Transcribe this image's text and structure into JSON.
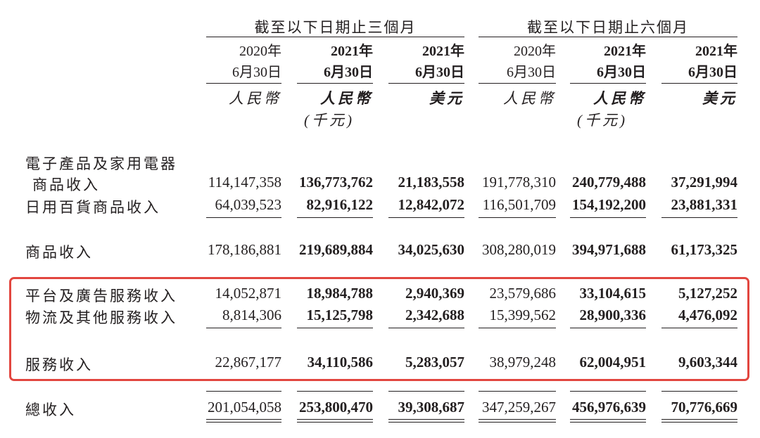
{
  "groups": [
    "截至以下日期止三個月",
    "截至以下日期止六個月"
  ],
  "columns": [
    {
      "year": "2020年",
      "date": "6月30日",
      "currency": "人民幣"
    },
    {
      "year": "2021年",
      "date": "6月30日",
      "currency": "人民幣"
    },
    {
      "year": "2021年",
      "date": "6月30日",
      "currency": "美元"
    },
    {
      "year": "2020年",
      "date": "6月30日",
      "currency": "人民幣"
    },
    {
      "year": "2021年",
      "date": "6月30日",
      "currency": "人民幣"
    },
    {
      "year": "2021年",
      "date": "6月30日",
      "currency": "美元"
    }
  ],
  "unit": "(千元)",
  "rows": [
    {
      "label": "電子產品及家用電器",
      "label2": "商品收入",
      "values": [
        "114,147,358",
        "136,773,762",
        "21,183,558",
        "191,778,310",
        "240,779,488",
        "37,291,994"
      ]
    },
    {
      "label": "日用百貨商品收入",
      "values": [
        "64,039,523",
        "82,916,122",
        "12,842,072",
        "116,501,709",
        "154,192,200",
        "23,881,331"
      ]
    },
    {
      "label": "商品收入",
      "values": [
        "178,186,881",
        "219,689,884",
        "34,025,630",
        "308,280,019",
        "394,971,688",
        "61,173,325"
      ]
    },
    {
      "label": "平台及廣告服務收入",
      "values": [
        "14,052,871",
        "18,984,788",
        "2,940,369",
        "23,579,686",
        "33,104,615",
        "5,127,252"
      ]
    },
    {
      "label": "物流及其他服務收入",
      "values": [
        "8,814,306",
        "15,125,798",
        "2,342,688",
        "15,399,562",
        "28,900,336",
        "4,476,092"
      ]
    },
    {
      "label": "服務收入",
      "values": [
        "22,867,177",
        "34,110,586",
        "5,283,057",
        "38,979,248",
        "62,004,951",
        "9,603,344"
      ]
    },
    {
      "label": "總收入",
      "values": [
        "201,054,058",
        "253,800,470",
        "39,308,687",
        "347,259,267",
        "456,976,639",
        "70,776,669"
      ]
    }
  ],
  "highlight_color": "#e2463f"
}
